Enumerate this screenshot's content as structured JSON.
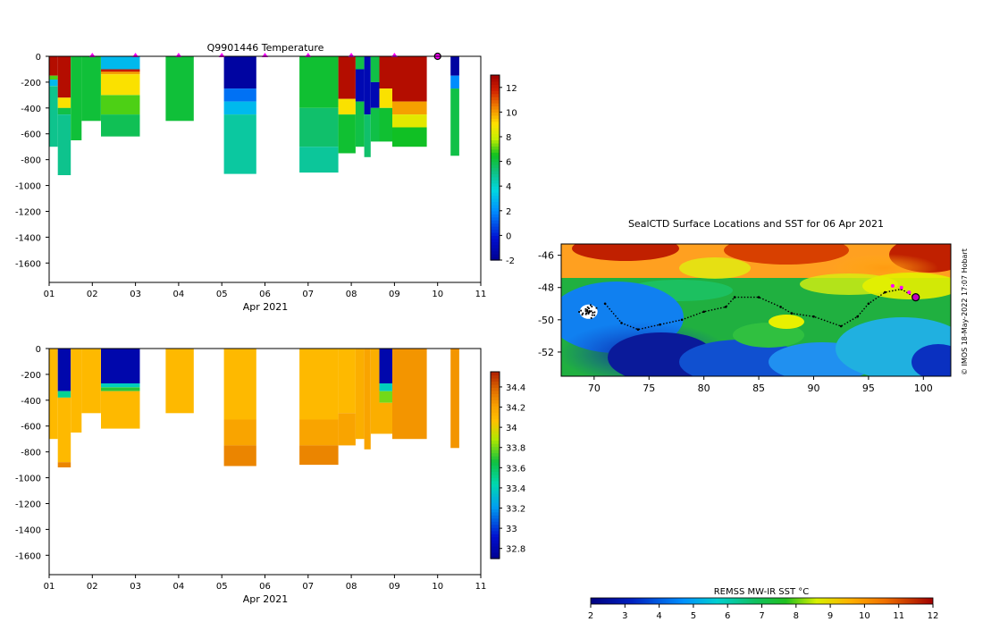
{
  "chart_data": [
    {
      "type": "heatmap",
      "title": "Q9901446  Temperature",
      "xlabel": "Apr 2021",
      "ylabel": "",
      "xlim": [
        1,
        11
      ],
      "ylim": [
        -1750,
        0
      ],
      "x_ticks": [
        "01",
        "02",
        "03",
        "04",
        "05",
        "06",
        "07",
        "08",
        "09",
        "10",
        "11"
      ],
      "y_ticks": [
        "0",
        "-200",
        "-400",
        "-600",
        "-800",
        "-1000",
        "-1200",
        "-1400",
        "-1600"
      ],
      "colorbar": {
        "min": -2,
        "max": 13,
        "ticks": [
          "12",
          "10",
          "8",
          "6",
          "4",
          "2",
          "0",
          "-2"
        ]
      },
      "surface_markers_days": [
        2.0,
        3.0,
        4.0,
        5.0,
        6.0,
        7.0,
        8.0,
        9.0
      ],
      "current_position_day": 10.0,
      "profiles": [
        {
          "x0": 1.0,
          "x1": 1.2,
          "depth": 700,
          "segs": [
            [
              0,
              150,
              12.5
            ],
            [
              150,
              180,
              7
            ],
            [
              180,
              230,
              3
            ],
            [
              230,
              700,
              5
            ]
          ]
        },
        {
          "x0": 1.2,
          "x1": 1.5,
          "depth": 920,
          "segs": [
            [
              0,
              320,
              12.5
            ],
            [
              320,
              400,
              9
            ],
            [
              400,
              450,
              6
            ],
            [
              450,
              920,
              5
            ]
          ]
        },
        {
          "x0": 1.5,
          "x1": 1.75,
          "depth": 650,
          "segs": [
            [
              0,
              650,
              6.2
            ]
          ]
        },
        {
          "x0": 1.75,
          "x1": 2.2,
          "depth": 500,
          "segs": [
            [
              0,
              500,
              6.2
            ]
          ]
        },
        {
          "x0": 2.2,
          "x1": 3.1,
          "depth": 620,
          "segs": [
            [
              0,
              100,
              3
            ],
            [
              100,
              120,
              12
            ],
            [
              120,
              140,
              10
            ],
            [
              140,
              300,
              9
            ],
            [
              300,
              450,
              7
            ],
            [
              450,
              620,
              5.8
            ]
          ]
        },
        {
          "x0": 3.7,
          "x1": 4.35,
          "depth": 500,
          "segs": [
            [
              0,
              500,
              6.2
            ]
          ]
        },
        {
          "x0": 5.05,
          "x1": 5.8,
          "depth": 910,
          "segs": [
            [
              0,
              250,
              -1.5
            ],
            [
              250,
              350,
              1.5
            ],
            [
              350,
              450,
              3
            ],
            [
              450,
              910,
              4.7
            ]
          ]
        },
        {
          "x0": 6.8,
          "x1": 7.7,
          "depth": 900,
          "segs": [
            [
              0,
              400,
              6.3
            ],
            [
              400,
              700,
              5.5
            ],
            [
              700,
              900,
              4.8
            ]
          ]
        },
        {
          "x0": 7.7,
          "x1": 8.1,
          "depth": 750,
          "segs": [
            [
              0,
              330,
              12.5
            ],
            [
              330,
              450,
              9
            ],
            [
              450,
              750,
              6.3
            ]
          ]
        },
        {
          "x0": 8.1,
          "x1": 8.3,
          "depth": 700,
          "segs": [
            [
              0,
              100,
              6
            ],
            [
              100,
              350,
              -1
            ],
            [
              350,
              700,
              6
            ]
          ]
        },
        {
          "x0": 8.3,
          "x1": 8.45,
          "depth": 780,
          "segs": [
            [
              0,
              450,
              -1
            ],
            [
              450,
              780,
              5.5
            ]
          ]
        },
        {
          "x0": 8.45,
          "x1": 8.65,
          "depth": 660,
          "segs": [
            [
              0,
              200,
              6
            ],
            [
              200,
              400,
              -1
            ],
            [
              400,
              660,
              6
            ]
          ]
        },
        {
          "x0": 8.65,
          "x1": 8.95,
          "depth": 660,
          "segs": [
            [
              0,
              250,
              12.5
            ],
            [
              250,
              400,
              9
            ],
            [
              400,
              660,
              6.3
            ]
          ]
        },
        {
          "x0": 8.95,
          "x1": 9.75,
          "depth": 700,
          "segs": [
            [
              0,
              350,
              12.5
            ],
            [
              350,
              450,
              10
            ],
            [
              450,
              550,
              8.5
            ],
            [
              550,
              700,
              6.5
            ]
          ]
        },
        {
          "x0": 10.3,
          "x1": 10.5,
          "depth": 770,
          "segs": [
            [
              0,
              150,
              -1.5
            ],
            [
              150,
              250,
              2
            ],
            [
              250,
              770,
              6
            ]
          ]
        }
      ]
    },
    {
      "type": "heatmap",
      "title": "",
      "xlabel": "Apr 2021",
      "ylabel": "",
      "xlim": [
        1,
        11
      ],
      "ylim": [
        -1750,
        0
      ],
      "x_ticks": [
        "01",
        "02",
        "03",
        "04",
        "05",
        "06",
        "07",
        "08",
        "09",
        "10",
        "11"
      ],
      "y_ticks": [
        "0",
        "-200",
        "-400",
        "-600",
        "-800",
        "-1000",
        "-1200",
        "-1400",
        "-1600"
      ],
      "colorbar": {
        "min": 32.7,
        "max": 34.55,
        "ticks": [
          "34.4",
          "34.2",
          "34",
          "33.8",
          "33.6",
          "33.4",
          "33.2",
          "33",
          "32.8"
        ]
      },
      "profiles": [
        {
          "x0": 1.0,
          "x1": 1.2,
          "depth": 700,
          "segs": [
            [
              0,
              700,
              34.1
            ]
          ]
        },
        {
          "x0": 1.2,
          "x1": 1.5,
          "depth": 920,
          "segs": [
            [
              0,
              330,
              32.8
            ],
            [
              330,
              380,
              33.5
            ],
            [
              380,
              880,
              34.1
            ],
            [
              880,
              920,
              34.3
            ]
          ]
        },
        {
          "x0": 1.5,
          "x1": 1.75,
          "depth": 650,
          "segs": [
            [
              0,
              650,
              34.1
            ]
          ]
        },
        {
          "x0": 1.75,
          "x1": 2.2,
          "depth": 500,
          "segs": [
            [
              0,
              500,
              34.1
            ]
          ]
        },
        {
          "x0": 2.2,
          "x1": 3.1,
          "depth": 620,
          "segs": [
            [
              0,
              270,
              32.8
            ],
            [
              270,
              300,
              33.4
            ],
            [
              300,
              330,
              33.7
            ],
            [
              330,
              620,
              34.1
            ]
          ]
        },
        {
          "x0": 3.7,
          "x1": 4.35,
          "depth": 500,
          "segs": [
            [
              0,
              500,
              34.1
            ]
          ]
        },
        {
          "x0": 5.05,
          "x1": 5.8,
          "depth": 910,
          "segs": [
            [
              0,
              550,
              34.1
            ],
            [
              550,
              750,
              34.2
            ],
            [
              750,
              910,
              34.3
            ]
          ]
        },
        {
          "x0": 6.8,
          "x1": 7.7,
          "depth": 900,
          "segs": [
            [
              0,
              550,
              34.1
            ],
            [
              550,
              750,
              34.2
            ],
            [
              750,
              900,
              34.3
            ]
          ]
        },
        {
          "x0": 7.7,
          "x1": 8.1,
          "depth": 750,
          "segs": [
            [
              0,
              500,
              34.1
            ],
            [
              500,
              750,
              34.2
            ]
          ]
        },
        {
          "x0": 8.1,
          "x1": 8.3,
          "depth": 700,
          "segs": [
            [
              0,
              700,
              34.15
            ]
          ]
        },
        {
          "x0": 8.3,
          "x1": 8.45,
          "depth": 780,
          "segs": [
            [
              0,
              780,
              34.2
            ]
          ]
        },
        {
          "x0": 8.45,
          "x1": 8.65,
          "depth": 660,
          "segs": [
            [
              0,
              660,
              34.15
            ]
          ]
        },
        {
          "x0": 8.65,
          "x1": 8.95,
          "depth": 660,
          "segs": [
            [
              0,
              270,
              32.8
            ],
            [
              270,
              330,
              33.4
            ],
            [
              330,
              420,
              33.8
            ],
            [
              420,
              660,
              34.15
            ]
          ]
        },
        {
          "x0": 8.95,
          "x1": 9.75,
          "depth": 700,
          "segs": [
            [
              0,
              700,
              34.25
            ]
          ]
        },
        {
          "x0": 10.3,
          "x1": 10.5,
          "depth": 770,
          "segs": [
            [
              0,
              770,
              34.25
            ]
          ]
        }
      ]
    },
    {
      "type": "map",
      "title": "SealCTD Surface Locations and SST for 06 Apr 2021",
      "xlim": [
        67,
        102.5
      ],
      "ylim": [
        -53.5,
        -45.3
      ],
      "x_ticks": [
        "70",
        "75",
        "80",
        "85",
        "90",
        "95",
        "100"
      ],
      "y_ticks": [
        "-46",
        "-48",
        "-50",
        "-52"
      ],
      "colorbar": {
        "label": "REMSS MW-IR SST °C",
        "min": 2,
        "max": 12,
        "ticks": [
          "2",
          "3",
          "4",
          "5",
          "6",
          "7",
          "8",
          "9",
          "10",
          "11",
          "12"
        ]
      },
      "side_note": "© IMOS 18-May-2022 17:07 Hobart",
      "track": [
        [
          71,
          -49.0
        ],
        [
          72.5,
          -50.2
        ],
        [
          74,
          -50.6
        ],
        [
          76,
          -50.3
        ],
        [
          78,
          -50.0
        ],
        [
          80,
          -49.5
        ],
        [
          82,
          -49.2
        ],
        [
          82.8,
          -48.6
        ],
        [
          85,
          -48.6
        ],
        [
          87,
          -49.2
        ],
        [
          88,
          -49.6
        ],
        [
          90,
          -49.8
        ],
        [
          92.5,
          -50.4
        ],
        [
          94,
          -49.8
        ],
        [
          95,
          -49.0
        ],
        [
          96.5,
          -48.3
        ],
        [
          98,
          -48.1
        ],
        [
          99.2,
          -48.6
        ]
      ],
      "recent_positions": [
        [
          97.2,
          -47.9
        ],
        [
          98.0,
          -48.0
        ],
        [
          98.7,
          -48.3
        ]
      ],
      "current_position": [
        99.3,
        -48.6
      ],
      "start_region_lon_lat": [
        69.5,
        -49.5
      ]
    }
  ],
  "colors": {
    "marker": "#ff00ff",
    "current": "#ff00ff",
    "track": "#000000"
  }
}
